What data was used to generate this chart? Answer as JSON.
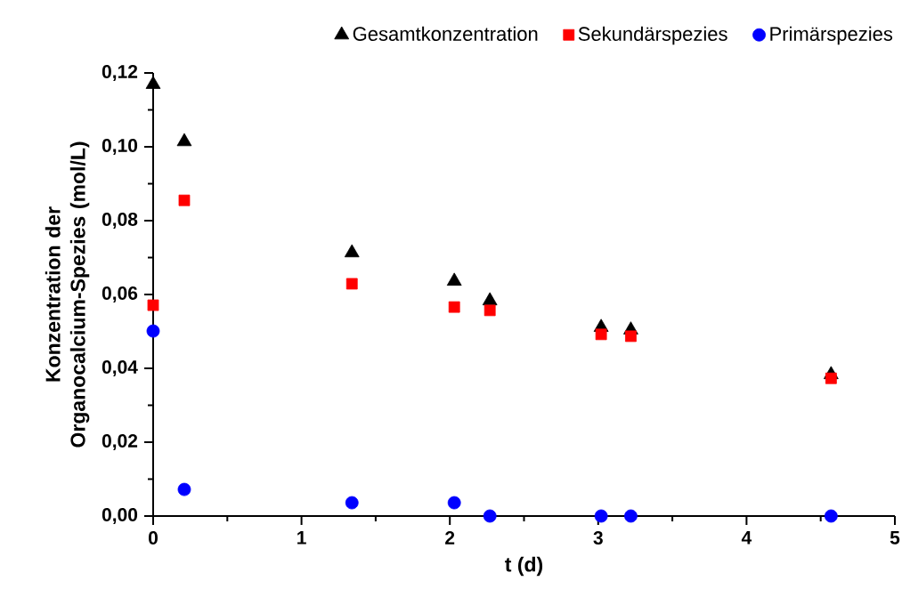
{
  "chart_data": {
    "type": "scatter",
    "xlabel": "t (d)",
    "ylabel": "Konzentration der Organocalcium-Spezies (mol/L)",
    "x": [
      0,
      0.21,
      1.34,
      2.03,
      2.27,
      3.02,
      3.22,
      4.57
    ],
    "series": [
      {
        "name": "Gesamtkonzentration",
        "color": "#000000",
        "marker": "triangle",
        "values": [
          0.1169,
          0.1014,
          0.0713,
          0.0636,
          0.0583,
          0.0511,
          0.0504,
          0.0383
        ]
      },
      {
        "name": "Sekundärspezies",
        "color": "#ff0000",
        "marker": "square",
        "values": [
          0.0571,
          0.0855,
          0.0629,
          0.0566,
          0.0557,
          0.0492,
          0.0487,
          0.0373
        ]
      },
      {
        "name": "Primärspezies",
        "color": "#0000ff",
        "marker": "circle",
        "values": [
          0.0501,
          0.0072,
          0.0036,
          0.0036,
          0,
          0,
          0,
          0
        ]
      }
    ],
    "xlim": [
      0,
      5
    ],
    "ylim": [
      0,
      0.12
    ],
    "xticks": [
      0,
      1,
      2,
      3,
      4,
      5
    ],
    "yticks": [
      {
        "value": 0,
        "label": "0,00"
      },
      {
        "value": 0.02,
        "label": "0,02"
      },
      {
        "value": 0.04,
        "label": "0,04"
      },
      {
        "value": 0.06,
        "label": "0,06"
      },
      {
        "value": 0.08,
        "label": "0,08"
      },
      {
        "value": 0.1,
        "label": "0,10"
      },
      {
        "value": 0.12,
        "label": "0,12"
      }
    ],
    "grid": false,
    "legend": "top"
  }
}
